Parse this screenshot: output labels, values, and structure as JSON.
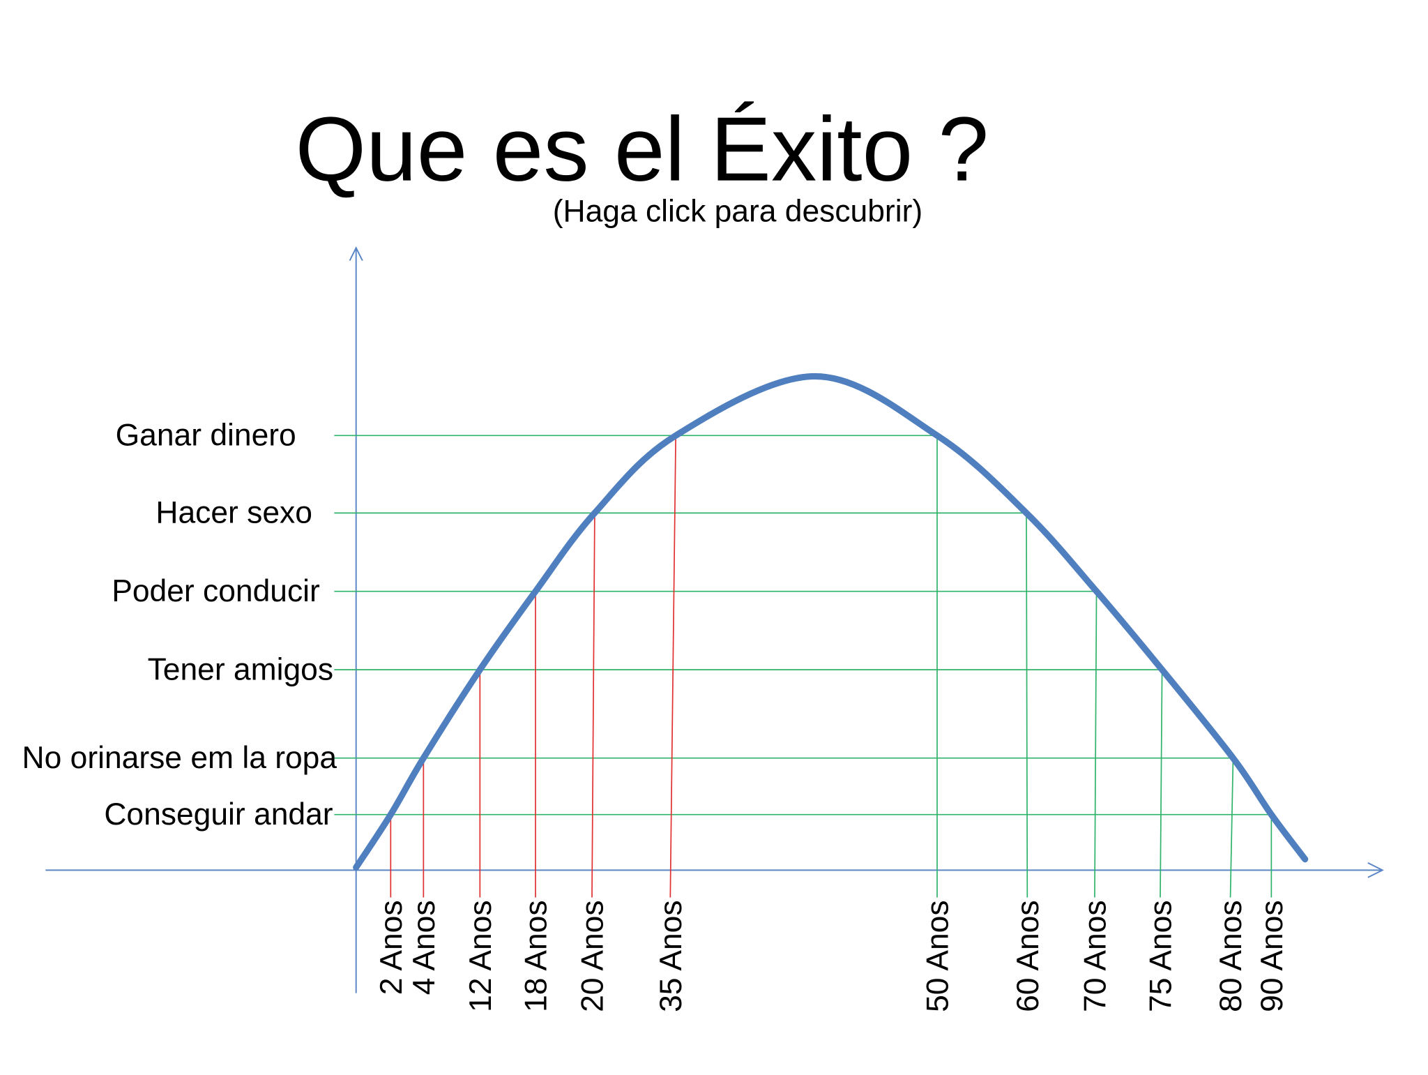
{
  "title": "Que es el Éxito ?",
  "subtitle": "(Haga click para descubrir)",
  "levels": [
    "Ganar dinero",
    "Hacer sexo",
    "Poder conducir",
    "Tener amigos",
    "No orinarse em la ropa",
    "Conseguir andar"
  ],
  "ages": [
    "2 Anos",
    "4 Anos",
    "12 Anos",
    "18 Anos",
    "20 Anos",
    "35 Anos",
    "50 Anos",
    "60 Anos",
    "70 Anos",
    "75 Anos",
    "80 Anos",
    "90 Anos"
  ]
}
